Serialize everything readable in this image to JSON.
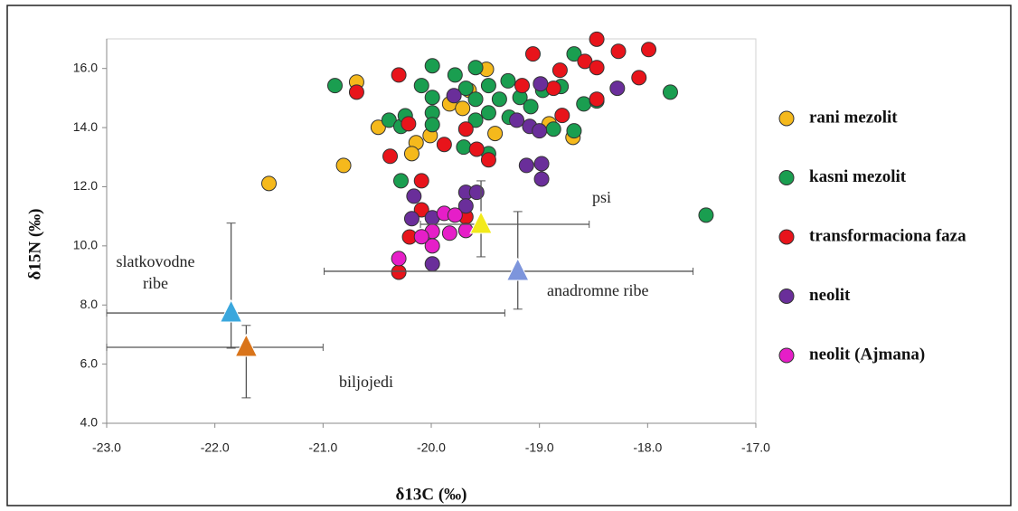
{
  "chart_data": {
    "type": "scatter",
    "xlabel": "δ13C (‰)",
    "ylabel": "δ15N (‰)",
    "xlim": [
      -23.0,
      -17.0
    ],
    "ylim": [
      4.0,
      17.0
    ],
    "xticks": [
      {
        "value": -23,
        "label": "-23.0"
      },
      {
        "value": -22,
        "label": "-22.0"
      },
      {
        "value": -21,
        "label": "-21.0"
      },
      {
        "value": -20,
        "label": "-20.0"
      },
      {
        "value": -19,
        "label": "-19.0"
      },
      {
        "value": -18,
        "label": "-18.0"
      },
      {
        "value": -17,
        "label": "-17.0"
      }
    ],
    "yticks": [
      {
        "value": 4,
        "label": "4.0"
      },
      {
        "value": 6,
        "label": "6.0"
      },
      {
        "value": 8,
        "label": "8.0"
      },
      {
        "value": 10,
        "label": "10.0"
      },
      {
        "value": 12,
        "label": "12.0"
      },
      {
        "value": 14,
        "label": "14.0"
      },
      {
        "value": 16,
        "label": "16.0"
      }
    ],
    "series": [
      {
        "name": "rani mezolit",
        "color": "#f5b91c",
        "x": [
          -21.5,
          -20.81,
          -20.69,
          -20.49,
          -20.14,
          -20.18,
          -20.01,
          -19.83,
          -19.71,
          -19.65,
          -19.49,
          -19.41,
          -18.91,
          -18.69
        ],
        "y": [
          12.11,
          12.72,
          15.54,
          14.01,
          13.49,
          13.12,
          13.73,
          14.8,
          14.65,
          15.26,
          15.97,
          13.8,
          14.13,
          13.67
        ]
      },
      {
        "name": "kasni mezolit",
        "color": "#1a9e50",
        "x": [
          -20.89,
          -20.39,
          -20.28,
          -20.24,
          -20.09,
          -19.99,
          -19.99,
          -19.99,
          -19.99,
          -19.78,
          -19.68,
          -19.59,
          -19.59,
          -19.59,
          -19.47,
          -19.47,
          -19.37,
          -19.29,
          -19.28,
          -19.18,
          -19.08,
          -18.97,
          -18.87,
          -18.68,
          -18.68,
          -18.59,
          -18.47,
          -17.79,
          -17.46,
          -20.28,
          -19.7,
          -19.47,
          -18.8
        ],
        "y": [
          15.42,
          14.25,
          14.04,
          14.4,
          15.42,
          16.09,
          15.02,
          14.5,
          14.1,
          15.78,
          15.33,
          16.03,
          14.96,
          14.25,
          15.42,
          14.5,
          14.96,
          15.58,
          14.35,
          15.02,
          14.71,
          15.26,
          13.95,
          16.49,
          13.89,
          14.8,
          14.9,
          15.2,
          11.04,
          12.2,
          13.34,
          13.12,
          15.39
        ]
      },
      {
        "name": "transformaciona faza",
        "color": "#e8141b",
        "x": [
          -20.69,
          -20.3,
          -20.21,
          -20.38,
          -20.09,
          -20.09,
          -20.3,
          -20.2,
          -19.88,
          -19.68,
          -19.58,
          -19.47,
          -19.68,
          -19.16,
          -19.06,
          -18.87,
          -18.81,
          -18.79,
          -18.58,
          -18.47,
          -18.47,
          -18.47,
          -18.27,
          -18.08,
          -17.99
        ],
        "y": [
          15.2,
          15.78,
          14.13,
          13.03,
          12.2,
          11.22,
          9.11,
          10.3,
          13.43,
          13.95,
          13.27,
          12.91,
          10.98,
          15.42,
          16.49,
          15.33,
          15.94,
          14.41,
          16.24,
          16.99,
          16.03,
          14.96,
          16.58,
          15.69,
          16.64
        ]
      },
      {
        "name": "neolit",
        "color": "#6a2e9a",
        "x": [
          -20.16,
          -20.18,
          -19.99,
          -19.99,
          -19.79,
          -19.68,
          -19.58,
          -19.68,
          -19.12,
          -18.98,
          -18.98,
          -19.09,
          -19.0,
          -18.28,
          -18.99,
          -19.21
        ],
        "y": [
          11.68,
          10.92,
          10.95,
          9.39,
          15.08,
          11.81,
          11.81,
          11.35,
          12.72,
          12.78,
          12.26,
          14.04,
          13.89,
          15.33,
          15.48,
          14.25
        ]
      },
      {
        "name": "neolit (Ajmana)",
        "color": "#e61ec8",
        "x": [
          -20.3,
          -19.99,
          -19.99,
          -19.88,
          -19.83,
          -19.68,
          -19.78,
          -20.09
        ],
        "y": [
          9.57,
          10.49,
          10.0,
          11.1,
          10.43,
          10.52,
          11.04,
          10.31
        ]
      }
    ],
    "reference_groups": [
      {
        "name": [
          "slatkovodne",
          "ribe"
        ],
        "color": "#3aa7dd",
        "x": -21.85,
        "y": 7.73,
        "x_range": [
          -23.0,
          -19.32
        ],
        "y_range": [
          6.54,
          10.77
        ]
      },
      {
        "name": [
          "biljojedi"
        ],
        "color": "#d9741a",
        "x": -21.71,
        "y": 6.57,
        "x_range": [
          -23.0,
          -21.0
        ],
        "y_range": [
          4.86,
          7.31
        ]
      },
      {
        "name": [
          "psi"
        ],
        "color": "#f2ea1b",
        "x": -19.54,
        "y": 10.73,
        "x_range": [
          -20.1,
          -18.54
        ],
        "y_range": [
          9.63,
          12.2
        ]
      },
      {
        "name": [
          "anadromne ribe"
        ],
        "color": "#7d95dc",
        "x": -19.2,
        "y": 9.14,
        "x_range": [
          -20.99,
          -17.58
        ],
        "y_range": [
          7.86,
          11.16
        ]
      }
    ]
  }
}
